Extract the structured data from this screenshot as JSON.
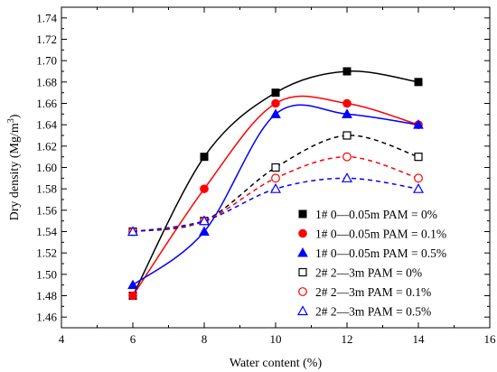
{
  "chart_data": {
    "type": "scatter",
    "xlabel": "Water content (%)",
    "ylabel": "Dry density (Mg/m",
    "ylabel_sup": "3",
    "ylabel_end": ")",
    "xlim": [
      4,
      16
    ],
    "ylim": [
      1.45,
      1.75
    ],
    "xticks": [
      "4",
      "6",
      "8",
      "10",
      "12",
      "14",
      "16"
    ],
    "yticks": [
      "1.46",
      "1.48",
      "1.50",
      "1.52",
      "1.54",
      "1.56",
      "1.58",
      "1.60",
      "1.62",
      "1.64",
      "1.66",
      "1.68",
      "1.70",
      "1.72",
      "1.74"
    ],
    "grid": false,
    "legend_position": "bottom-right",
    "x": [
      6,
      8,
      10,
      12,
      14
    ],
    "series": [
      {
        "name": "1# 0—0.05m PAM = 0%",
        "values": [
          1.48,
          1.61,
          1.67,
          1.69,
          1.68
        ],
        "color": "#000000",
        "marker": "square",
        "filled": true,
        "dashed": false
      },
      {
        "name": "1# 0—0.05m PAM = 0.1%",
        "values": [
          1.48,
          1.58,
          1.66,
          1.66,
          1.64
        ],
        "color": "#ff0000",
        "marker": "circle",
        "filled": true,
        "dashed": false
      },
      {
        "name": "1# 0—0.05m PAM = 0.5%",
        "values": [
          1.49,
          1.54,
          1.65,
          1.65,
          1.64
        ],
        "color": "#0000ff",
        "marker": "triangle",
        "filled": true,
        "dashed": false
      },
      {
        "name": "2# 2—3m PAM = 0%",
        "values": [
          1.54,
          1.55,
          1.6,
          1.63,
          1.61
        ],
        "color": "#000000",
        "marker": "square",
        "filled": false,
        "dashed": true
      },
      {
        "name": "2# 2—3m PAM = 0.1%",
        "values": [
          1.54,
          1.55,
          1.59,
          1.61,
          1.59
        ],
        "color": "#ff0000",
        "marker": "circle",
        "filled": false,
        "dashed": true
      },
      {
        "name": "2# 2—3m PAM = 0.5%",
        "values": [
          1.54,
          1.55,
          1.58,
          1.59,
          1.58
        ],
        "color": "#0000ff",
        "marker": "triangle",
        "filled": false,
        "dashed": true
      }
    ]
  }
}
